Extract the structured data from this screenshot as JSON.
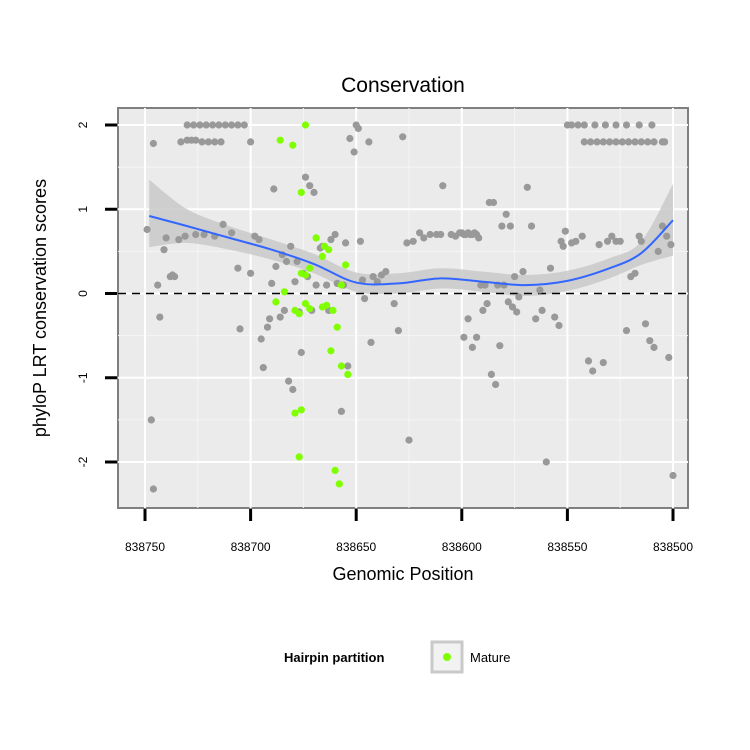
{
  "chart_data": {
    "type": "scatter",
    "title": "Conservation",
    "xlabel": "Genomic Position",
    "ylabel": "phyloP LRT conservation scores",
    "x_reversed": true,
    "xlim": [
      838500,
      838750
    ],
    "ylim": [
      -2.5,
      2.2
    ],
    "x_ticks": [
      838750,
      838700,
      838650,
      838600,
      838550,
      838500
    ],
    "y_ticks": [
      -2,
      -1,
      0,
      1,
      2
    ],
    "reference_line_y": 0,
    "legend": {
      "title": "Hairpin partition",
      "entries": [
        {
          "label": "Mature",
          "color": "#7fff00"
        }
      ]
    },
    "colors": {
      "other": "#999999",
      "mature": "#7fff00",
      "smooth": "#3366ff",
      "ribbon": "#c9c9c9",
      "panel": "#ebebeb"
    },
    "smooth": {
      "x": [
        838748,
        838730,
        838710,
        838690,
        838670,
        838650,
        838630,
        838610,
        838590,
        838570,
        838550,
        838530,
        838515,
        838500
      ],
      "y": [
        0.92,
        0.8,
        0.66,
        0.52,
        0.35,
        0.13,
        0.12,
        0.18,
        0.14,
        0.1,
        0.15,
        0.3,
        0.48,
        0.87
      ],
      "lower": [
        0.55,
        0.6,
        0.52,
        0.4,
        0.24,
        0.02,
        0.0,
        0.06,
        0.02,
        -0.03,
        0.03,
        0.18,
        0.34,
        0.45
      ],
      "upper": [
        1.35,
        1.0,
        0.8,
        0.64,
        0.47,
        0.25,
        0.24,
        0.3,
        0.26,
        0.22,
        0.27,
        0.42,
        0.62,
        1.3
      ]
    },
    "series": [
      {
        "name": "Other",
        "points": [
          [
            838746,
            1.78
          ],
          [
            838749,
            0.76
          ],
          [
            838744,
            0.1
          ],
          [
            838743,
            -0.28
          ],
          [
            838747,
            -1.5
          ],
          [
            838746,
            -2.32
          ],
          [
            838741,
            0.52
          ],
          [
            838740,
            0.66
          ],
          [
            838738,
            0.2
          ],
          [
            838737,
            0.22
          ],
          [
            838736,
            0.2
          ],
          [
            838734,
            0.64
          ],
          [
            838733,
            1.8
          ],
          [
            838730,
            1.82
          ],
          [
            838728,
            1.82
          ],
          [
            838726,
            1.82
          ],
          [
            838723,
            1.8
          ],
          [
            838720,
            1.8
          ],
          [
            838717,
            1.8
          ],
          [
            838714,
            1.8
          ],
          [
            838730,
            2.0
          ],
          [
            838727,
            2.0
          ],
          [
            838724,
            2.0
          ],
          [
            838721,
            2.0
          ],
          [
            838718,
            2.0
          ],
          [
            838715,
            2.0
          ],
          [
            838712,
            2.0
          ],
          [
            838709,
            2.0
          ],
          [
            838706,
            2.0
          ],
          [
            838703,
            2.0
          ],
          [
            838700,
            1.8
          ],
          [
            838731,
            0.68
          ],
          [
            838726,
            0.7
          ],
          [
            838722,
            0.7
          ],
          [
            838717,
            0.68
          ],
          [
            838713,
            0.82
          ],
          [
            838709,
            0.72
          ],
          [
            838706,
            0.3
          ],
          [
            838705,
            -0.42
          ],
          [
            838700,
            0.24
          ],
          [
            838698,
            0.68
          ],
          [
            838696,
            0.64
          ],
          [
            838695,
            -0.54
          ],
          [
            838694,
            -0.88
          ],
          [
            838692,
            -0.4
          ],
          [
            838691,
            -0.3
          ],
          [
            838690,
            0.12
          ],
          [
            838689,
            1.24
          ],
          [
            838688,
            0.32
          ],
          [
            838686,
            -0.28
          ],
          [
            838685,
            0.46
          ],
          [
            838684,
            -0.2
          ],
          [
            838683,
            0.38
          ],
          [
            838682,
            -1.04
          ],
          [
            838681,
            0.56
          ],
          [
            838680,
            -1.14
          ],
          [
            838679,
            0.14
          ],
          [
            838678,
            0.38
          ],
          [
            838677,
            -0.22
          ],
          [
            838676,
            -0.7
          ],
          [
            838675,
            0.24
          ],
          [
            838674,
            1.38
          ],
          [
            838673,
            0.2
          ],
          [
            838672,
            1.28
          ],
          [
            838671,
            -0.2
          ],
          [
            838670,
            1.2
          ],
          [
            838669,
            0.1
          ],
          [
            838667,
            0.54
          ],
          [
            838666,
            0.56
          ],
          [
            838664,
            0.1
          ],
          [
            838663,
            -0.2
          ],
          [
            838662,
            0.64
          ],
          [
            838660,
            0.7
          ],
          [
            838659,
            0.12
          ],
          [
            838657,
            -1.4
          ],
          [
            838656,
            0.1
          ],
          [
            838655,
            0.6
          ],
          [
            838654,
            -0.86
          ],
          [
            838653,
            1.84
          ],
          [
            838651,
            1.68
          ],
          [
            838650,
            2.0
          ],
          [
            838649,
            1.96
          ],
          [
            838648,
            0.62
          ],
          [
            838647,
            0.16
          ],
          [
            838646,
            -0.06
          ],
          [
            838644,
            1.8
          ],
          [
            838643,
            -0.58
          ],
          [
            838642,
            0.2
          ],
          [
            838640,
            0.14
          ],
          [
            838638,
            0.22
          ],
          [
            838636,
            0.26
          ],
          [
            838632,
            -0.12
          ],
          [
            838630,
            -0.44
          ],
          [
            838628,
            1.86
          ],
          [
            838626,
            0.6
          ],
          [
            838625,
            -1.74
          ],
          [
            838623,
            0.62
          ],
          [
            838620,
            0.72
          ],
          [
            838618,
            0.66
          ],
          [
            838615,
            0.7
          ],
          [
            838612,
            0.7
          ],
          [
            838610,
            0.7
          ],
          [
            838609,
            1.28
          ],
          [
            838605,
            0.7
          ],
          [
            838603,
            0.68
          ],
          [
            838601,
            0.72
          ],
          [
            838600,
            0.72
          ],
          [
            838599,
            0.7
          ],
          [
            838598,
            0.7
          ],
          [
            838597,
            0.72
          ],
          [
            838596,
            0.7
          ],
          [
            838595,
            0.7
          ],
          [
            838594,
            0.72
          ],
          [
            838593,
            0.7
          ],
          [
            838592,
            0.66
          ],
          [
            838599,
            -0.52
          ],
          [
            838597,
            -0.3
          ],
          [
            838595,
            -0.64
          ],
          [
            838593,
            -0.52
          ],
          [
            838590,
            -0.2
          ],
          [
            838588,
            -0.12
          ],
          [
            838586,
            -0.96
          ],
          [
            838584,
            -1.08
          ],
          [
            838582,
            -0.62
          ],
          [
            838580,
            0.1
          ],
          [
            838578,
            -0.1
          ],
          [
            838576,
            -0.16
          ],
          [
            838574,
            -0.22
          ],
          [
            838591,
            0.1
          ],
          [
            838589,
            0.1
          ],
          [
            838587,
            1.08
          ],
          [
            838585,
            1.08
          ],
          [
            838583,
            0.1
          ],
          [
            838581,
            0.8
          ],
          [
            838579,
            0.94
          ],
          [
            838577,
            0.8
          ],
          [
            838575,
            0.2
          ],
          [
            838573,
            -0.04
          ],
          [
            838571,
            0.26
          ],
          [
            838569,
            1.26
          ],
          [
            838567,
            0.8
          ],
          [
            838565,
            -0.3
          ],
          [
            838563,
            0.04
          ],
          [
            838562,
            -0.2
          ],
          [
            838560,
            -2.0
          ],
          [
            838558,
            0.3
          ],
          [
            838556,
            -0.28
          ],
          [
            838554,
            -0.38
          ],
          [
            838553,
            0.62
          ],
          [
            838552,
            0.56
          ],
          [
            838551,
            0.74
          ],
          [
            838550,
            2.0
          ],
          [
            838548,
            2.0
          ],
          [
            838545,
            2.0
          ],
          [
            838542,
            1.8
          ],
          [
            838539,
            1.8
          ],
          [
            838536,
            1.8
          ],
          [
            838533,
            1.8
          ],
          [
            838530,
            1.8
          ],
          [
            838527,
            1.8
          ],
          [
            838524,
            1.8
          ],
          [
            838521,
            1.8
          ],
          [
            838518,
            1.8
          ],
          [
            838515,
            1.8
          ],
          [
            838512,
            1.8
          ],
          [
            838509,
            1.8
          ],
          [
            838542,
            2.0
          ],
          [
            838537,
            2.0
          ],
          [
            838532,
            2.0
          ],
          [
            838527,
            2.0
          ],
          [
            838522,
            2.0
          ],
          [
            838516,
            2.0
          ],
          [
            838510,
            2.0
          ],
          [
            838505,
            1.8
          ],
          [
            838504,
            1.8
          ],
          [
            838548,
            0.6
          ],
          [
            838546,
            0.62
          ],
          [
            838543,
            0.68
          ],
          [
            838540,
            -0.8
          ],
          [
            838538,
            -0.92
          ],
          [
            838535,
            0.58
          ],
          [
            838533,
            -0.82
          ],
          [
            838531,
            0.62
          ],
          [
            838529,
            0.68
          ],
          [
            838527,
            0.62
          ],
          [
            838525,
            0.62
          ],
          [
            838522,
            -0.44
          ],
          [
            838520,
            0.2
          ],
          [
            838518,
            0.24
          ],
          [
            838516,
            0.68
          ],
          [
            838515,
            0.62
          ],
          [
            838513,
            -0.36
          ],
          [
            838511,
            -0.56
          ],
          [
            838509,
            -0.64
          ],
          [
            838507,
            0.5
          ],
          [
            838505,
            0.8
          ],
          [
            838503,
            0.68
          ],
          [
            838502,
            -0.76
          ],
          [
            838501,
            0.58
          ],
          [
            838500,
            -2.16
          ]
        ]
      },
      {
        "name": "Mature",
        "points": [
          [
            838674,
            2.0
          ],
          [
            838686,
            1.82
          ],
          [
            838680,
            1.76
          ],
          [
            838676,
            1.2
          ],
          [
            838669,
            0.66
          ],
          [
            838665,
            0.56
          ],
          [
            838663,
            0.52
          ],
          [
            838666,
            0.44
          ],
          [
            838672,
            0.3
          ],
          [
            838676,
            0.24
          ],
          [
            838655,
            0.34
          ],
          [
            838674,
            0.22
          ],
          [
            838684,
            0.02
          ],
          [
            838657,
            0.1
          ],
          [
            838688,
            -0.1
          ],
          [
            838664,
            -0.14
          ],
          [
            838666,
            -0.16
          ],
          [
            838661,
            -0.2
          ],
          [
            838672,
            -0.18
          ],
          [
            838674,
            -0.12
          ],
          [
            838679,
            -0.2
          ],
          [
            838677,
            -0.24
          ],
          [
            838659,
            -0.4
          ],
          [
            838662,
            -0.68
          ],
          [
            838657,
            -0.86
          ],
          [
            838654,
            -0.96
          ],
          [
            838676,
            -1.38
          ],
          [
            838679,
            -1.42
          ],
          [
            838677,
            -1.94
          ],
          [
            838660,
            -2.1
          ],
          [
            838658,
            -2.26
          ]
        ]
      }
    ]
  }
}
